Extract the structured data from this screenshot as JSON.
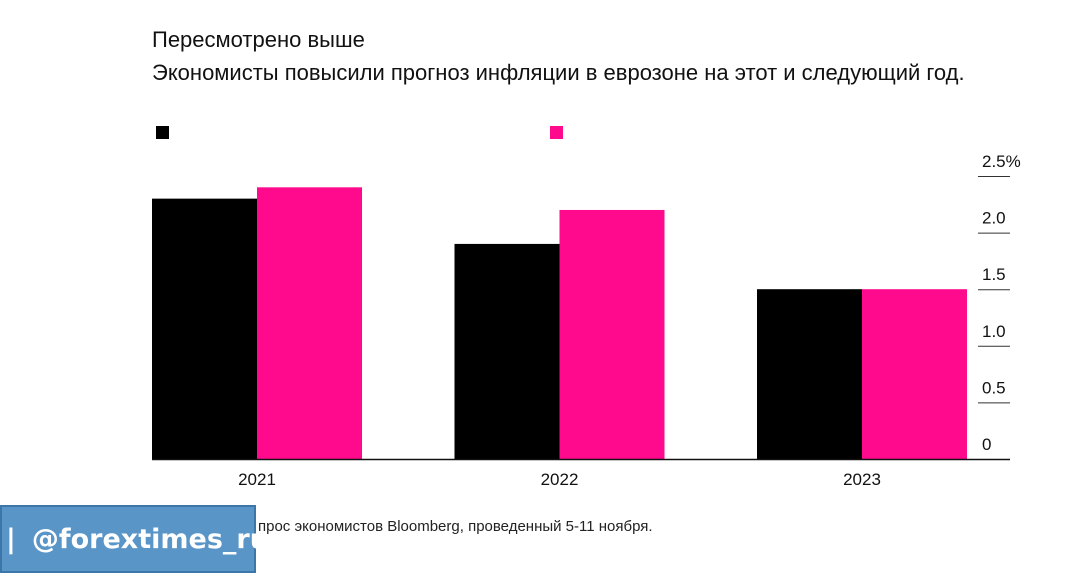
{
  "title": "Пересмотрено выше",
  "subtitle": "Экономисты повысили прогноз инфляции в еврозоне на этот и следующий год.",
  "source_text": "прос экономистов Bloomberg, проведенный 5-11 ноября.",
  "watermark": {
    "text": "@forextimes_ru",
    "bar": "|",
    "icon": "heart-icon"
  },
  "colors": {
    "series_1": "#000000",
    "series_2": "#ff0a8c",
    "axis": "#111111"
  },
  "chart_data": {
    "type": "bar",
    "categories": [
      "2021",
      "2022",
      "2023"
    ],
    "series": [
      {
        "values": [
          2.3,
          1.9,
          1.5
        ],
        "color": "#000000"
      },
      {
        "values": [
          2.4,
          2.2,
          1.5
        ],
        "color": "#ff0a8c"
      }
    ],
    "ylim": [
      0,
      2.5
    ],
    "yticks": [
      "0",
      "0.5",
      "1.0",
      "1.5",
      "2.0",
      "2.5%"
    ],
    "y_axis_position": "right",
    "legend_position": "top-left",
    "grid": false
  }
}
